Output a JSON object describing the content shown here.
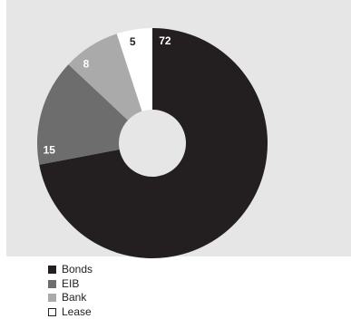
{
  "chart_data": {
    "type": "pie",
    "donut": true,
    "categories": [
      "Bonds",
      "EIB",
      "Bank",
      "Lease"
    ],
    "values": [
      72,
      15,
      8,
      5
    ],
    "colors": [
      "#231f20",
      "#6d6d6d",
      "#aaaaaa",
      "#ffffff"
    ],
    "data_labels": [
      "72",
      "15",
      "8",
      "5"
    ],
    "data_label_colors": [
      "#ffffff",
      "#ffffff",
      "#ffffff",
      "#231f20"
    ],
    "legend_position": "bottom-left",
    "start_angle_deg": 0,
    "direction": "clockwise",
    "background": "#e6e6e6"
  }
}
